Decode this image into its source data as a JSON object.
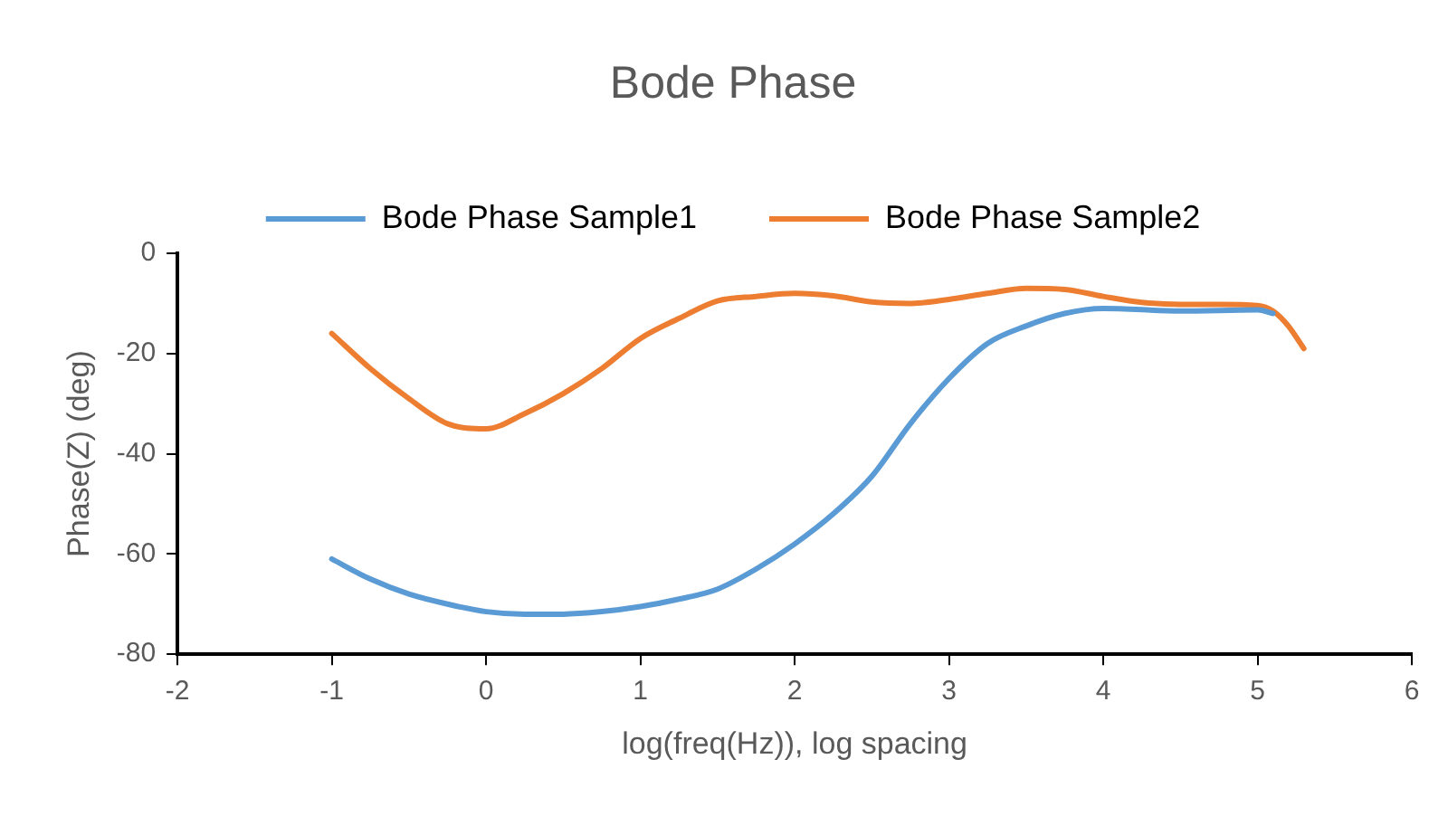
{
  "chart_data": {
    "type": "line",
    "title": "Bode Phase",
    "xlabel": "log(freq(Hz)), log spacing",
    "ylabel": "Phase(Z) (deg)",
    "xlim": [
      -2,
      6
    ],
    "xticks": [
      -2,
      -1,
      0,
      1,
      2,
      3,
      4,
      5,
      6
    ],
    "ylim": [
      -80,
      0
    ],
    "yticks": [
      -80,
      -60,
      -40,
      -20,
      0
    ],
    "grid": false,
    "legend": "top",
    "marker": "none",
    "line_style": "solid",
    "series": [
      {
        "name": "Bode Phase Sample1",
        "color": "#5b9bd5",
        "x": [
          -1,
          -0.75,
          -0.5,
          -0.25,
          0,
          0.25,
          0.5,
          0.75,
          1,
          1.25,
          1.5,
          1.75,
          2,
          2.25,
          2.5,
          2.75,
          3,
          3.25,
          3.5,
          3.75,
          4,
          4.5,
          5,
          5.1
        ],
        "values": [
          -61,
          -65,
          -68,
          -70,
          -71.5,
          -72,
          -72,
          -71.5,
          -70.5,
          -69,
          -67,
          -63,
          -58,
          -52,
          -44.5,
          -34,
          -25,
          -18,
          -14.5,
          -12,
          -11,
          -11.5,
          -11.3,
          -12
        ]
      },
      {
        "name": "Bode Phase Sample2",
        "color": "#ed7d31",
        "x": [
          -1,
          -0.75,
          -0.5,
          -0.25,
          0,
          0.25,
          0.5,
          0.75,
          1,
          1.25,
          1.5,
          1.75,
          2,
          2.25,
          2.5,
          2.75,
          3,
          3.25,
          3.5,
          3.75,
          4,
          4.25,
          4.5,
          4.75,
          5,
          5.1,
          5.2,
          5.3
        ],
        "values": [
          -16,
          -23,
          -29,
          -34,
          -35,
          -32,
          -28,
          -23,
          -17,
          -13,
          -9.5,
          -8.6,
          -8,
          -8.5,
          -9.7,
          -10,
          -9.2,
          -8,
          -7,
          -7.2,
          -8.6,
          -9.8,
          -10.2,
          -10.2,
          -10.4,
          -11.5,
          -14.5,
          -19
        ]
      }
    ]
  }
}
